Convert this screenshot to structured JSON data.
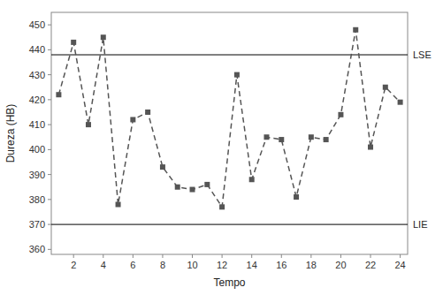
{
  "chart_data": {
    "type": "line",
    "x": [
      1,
      2,
      3,
      4,
      5,
      6,
      7,
      8,
      9,
      10,
      11,
      12,
      13,
      14,
      15,
      16,
      17,
      18,
      19,
      20,
      21,
      22,
      23,
      24
    ],
    "values": [
      422,
      443,
      410,
      445,
      378,
      412,
      415,
      393,
      385,
      384,
      386,
      377,
      430,
      388,
      405,
      404,
      381,
      405,
      404,
      414,
      448,
      401,
      425,
      419
    ],
    "color": "#555555",
    "marker": "square",
    "line_style": "dashed",
    "xlabel": "Tempo",
    "ylabel": "Dureza (HB)",
    "xlim": [
      0.5,
      24.5
    ],
    "ylim": [
      358,
      455
    ],
    "xticks": [
      2,
      4,
      6,
      8,
      10,
      12,
      14,
      16,
      18,
      20,
      22,
      24
    ],
    "yticks": [
      360,
      370,
      380,
      390,
      400,
      410,
      420,
      430,
      440,
      450
    ],
    "reference_lines": [
      {
        "value": 438,
        "label": "LSE"
      },
      {
        "value": 370,
        "label": "LIE"
      }
    ],
    "grid": false
  }
}
